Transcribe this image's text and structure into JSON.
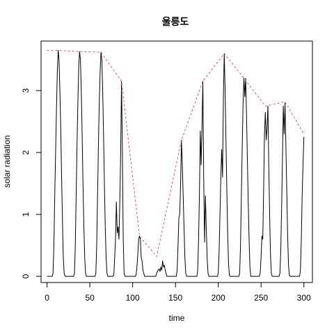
{
  "chart_data": {
    "type": "line",
    "title": "울릉도",
    "xlabel": "time",
    "ylabel": "solar radiation",
    "xlim": [
      -7,
      310
    ],
    "ylim": [
      -0.1,
      3.8
    ],
    "xticks": [
      0,
      50,
      100,
      150,
      200,
      250,
      300
    ],
    "yticks": [
      0,
      1,
      2,
      3
    ],
    "grid": false,
    "legend": "none",
    "series": [
      {
        "style": "solid",
        "color": "#000000",
        "points": [
          [
            0,
            0
          ],
          [
            1,
            0
          ],
          [
            2,
            0
          ],
          [
            3,
            0
          ],
          [
            4,
            0
          ],
          [
            5,
            0
          ],
          [
            6,
            0
          ],
          [
            7,
            0.05
          ],
          [
            8,
            0.5
          ],
          [
            9,
            1.3
          ],
          [
            10,
            2.0
          ],
          [
            11,
            2.7
          ],
          [
            12,
            3.3
          ],
          [
            13,
            3.65
          ],
          [
            14,
            3.5
          ],
          [
            15,
            3.0
          ],
          [
            16,
            2.4
          ],
          [
            17,
            1.6
          ],
          [
            18,
            0.9
          ],
          [
            19,
            0.3
          ],
          [
            20,
            0.05
          ],
          [
            21,
            0
          ],
          [
            22,
            0
          ],
          [
            23,
            0
          ],
          [
            24,
            0
          ],
          [
            25,
            0
          ],
          [
            26,
            0
          ],
          [
            27,
            0
          ],
          [
            28,
            0
          ],
          [
            29,
            0
          ],
          [
            30,
            0
          ],
          [
            31,
            0
          ],
          [
            32,
            0.05
          ],
          [
            33,
            0.5
          ],
          [
            34,
            1.3
          ],
          [
            35,
            2.1
          ],
          [
            36,
            2.8
          ],
          [
            37,
            3.4
          ],
          [
            38,
            3.63
          ],
          [
            39,
            3.5
          ],
          [
            40,
            3.0
          ],
          [
            41,
            2.3
          ],
          [
            42,
            1.5
          ],
          [
            43,
            0.8
          ],
          [
            44,
            0.3
          ],
          [
            45,
            0.05
          ],
          [
            46,
            0
          ],
          [
            47,
            0
          ],
          [
            48,
            0
          ],
          [
            49,
            0
          ],
          [
            50,
            0
          ],
          [
            51,
            0
          ],
          [
            52,
            0
          ],
          [
            53,
            0
          ],
          [
            54,
            0
          ],
          [
            55,
            0
          ],
          [
            56,
            0
          ],
          [
            57,
            0.05
          ],
          [
            58,
            0.5
          ],
          [
            59,
            1.3
          ],
          [
            60,
            2.1
          ],
          [
            61,
            2.8
          ],
          [
            62,
            3.3
          ],
          [
            63,
            3.62
          ],
          [
            64,
            3.5
          ],
          [
            65,
            3.0
          ],
          [
            66,
            2.3
          ],
          [
            67,
            1.5
          ],
          [
            68,
            0.8
          ],
          [
            69,
            0.3
          ],
          [
            70,
            0.05
          ],
          [
            71,
            0
          ],
          [
            72,
            0
          ],
          [
            73,
            0
          ],
          [
            74,
            0
          ],
          [
            75,
            0
          ],
          [
            76,
            0
          ],
          [
            77,
            0
          ],
          [
            78,
            0.02
          ],
          [
            79,
            0.3
          ],
          [
            80,
            0.6
          ],
          [
            81,
            1.2
          ],
          [
            82,
            0.7
          ],
          [
            83,
            0.8
          ],
          [
            84,
            0.6
          ],
          [
            85,
            1.2
          ],
          [
            86,
            2.0
          ],
          [
            87,
            3.15
          ],
          [
            88,
            2.0
          ],
          [
            89,
            0.6
          ],
          [
            90,
            0.05
          ],
          [
            91,
            0
          ],
          [
            92,
            0
          ],
          [
            93,
            0
          ],
          [
            94,
            0
          ],
          [
            95,
            0
          ],
          [
            96,
            0
          ],
          [
            97,
            0
          ],
          [
            98,
            0
          ],
          [
            99,
            0
          ],
          [
            100,
            0
          ],
          [
            101,
            0
          ],
          [
            102,
            0
          ],
          [
            103,
            0
          ],
          [
            104,
            0.02
          ],
          [
            105,
            0.15
          ],
          [
            106,
            0.35
          ],
          [
            107,
            0.6
          ],
          [
            108,
            0.65
          ],
          [
            109,
            0.6
          ],
          [
            110,
            0.3
          ],
          [
            111,
            0.25
          ],
          [
            112,
            0.1
          ],
          [
            113,
            0.05
          ],
          [
            114,
            0
          ],
          [
            115,
            0
          ],
          [
            116,
            0
          ],
          [
            117,
            0
          ],
          [
            118,
            0
          ],
          [
            119,
            0
          ],
          [
            120,
            0
          ],
          [
            121,
            0
          ],
          [
            122,
            0
          ],
          [
            123,
            0
          ],
          [
            124,
            0
          ],
          [
            125,
            0
          ],
          [
            126,
            0
          ],
          [
            127,
            0
          ],
          [
            128,
            0.05
          ],
          [
            129,
            0.08
          ],
          [
            130,
            0.1
          ],
          [
            131,
            0.12
          ],
          [
            132,
            0.08
          ],
          [
            133,
            0.15
          ],
          [
            134,
            0.1
          ],
          [
            135,
            0.25
          ],
          [
            136,
            0.15
          ],
          [
            137,
            0.18
          ],
          [
            138,
            0.1
          ],
          [
            139,
            0.05
          ],
          [
            140,
            0
          ],
          [
            141,
            0
          ],
          [
            142,
            0
          ],
          [
            143,
            0
          ],
          [
            144,
            0
          ],
          [
            145,
            0
          ],
          [
            146,
            0
          ],
          [
            147,
            0
          ],
          [
            148,
            0
          ],
          [
            149,
            0
          ],
          [
            150,
            0
          ],
          [
            151,
            0
          ],
          [
            152,
            0.1
          ],
          [
            153,
            0.5
          ],
          [
            154,
            0.95
          ],
          [
            155,
            1.0
          ],
          [
            156,
            1.5
          ],
          [
            157,
            2.2
          ],
          [
            158,
            1.8
          ],
          [
            159,
            1.3
          ],
          [
            160,
            0.8
          ],
          [
            161,
            0.3
          ],
          [
            162,
            0.05
          ],
          [
            163,
            0
          ],
          [
            164,
            0
          ],
          [
            165,
            0
          ],
          [
            166,
            0
          ],
          [
            167,
            0
          ],
          [
            168,
            0
          ],
          [
            169,
            0
          ],
          [
            170,
            0
          ],
          [
            171,
            0
          ],
          [
            172,
            0
          ],
          [
            173,
            0
          ],
          [
            174,
            0
          ],
          [
            175,
            0
          ],
          [
            176,
            0.1
          ],
          [
            177,
            0.6
          ],
          [
            178,
            1.3
          ],
          [
            179,
            2.35
          ],
          [
            180,
            1.8
          ],
          [
            181,
            2.4
          ],
          [
            182,
            3.15
          ],
          [
            183,
            1.6
          ],
          [
            184,
            0.55
          ],
          [
            185,
            1.3
          ],
          [
            186,
            0.8
          ],
          [
            187,
            0.3
          ],
          [
            188,
            0.05
          ],
          [
            189,
            0
          ],
          [
            190,
            0
          ],
          [
            191,
            0
          ],
          [
            192,
            0
          ],
          [
            193,
            0
          ],
          [
            194,
            0
          ],
          [
            195,
            0
          ],
          [
            196,
            0
          ],
          [
            197,
            0
          ],
          [
            198,
            0
          ],
          [
            199,
            0
          ],
          [
            200,
            0.05
          ],
          [
            201,
            0.4
          ],
          [
            202,
            1.0
          ],
          [
            203,
            1.6
          ],
          [
            204,
            2.05
          ],
          [
            205,
            1.6
          ],
          [
            206,
            2.9
          ],
          [
            207,
            3.6
          ],
          [
            208,
            3.0
          ],
          [
            209,
            2.2
          ],
          [
            210,
            1.4
          ],
          [
            211,
            0.7
          ],
          [
            212,
            0.2
          ],
          [
            213,
            0.02
          ],
          [
            214,
            0
          ],
          [
            215,
            0
          ],
          [
            216,
            0
          ],
          [
            217,
            0
          ],
          [
            218,
            0
          ],
          [
            219,
            0
          ],
          [
            220,
            0
          ],
          [
            221,
            0
          ],
          [
            222,
            0
          ],
          [
            223,
            0
          ],
          [
            224,
            0
          ],
          [
            225,
            0.05
          ],
          [
            226,
            0.5
          ],
          [
            227,
            1.3
          ],
          [
            228,
            2.1
          ],
          [
            229,
            2.8
          ],
          [
            230,
            3.2
          ],
          [
            231,
            2.9
          ],
          [
            232,
            3.2
          ],
          [
            233,
            2.6
          ],
          [
            234,
            1.9
          ],
          [
            235,
            1.2
          ],
          [
            236,
            0.6
          ],
          [
            237,
            0.15
          ],
          [
            238,
            0
          ],
          [
            239,
            0
          ],
          [
            240,
            0
          ],
          [
            241,
            0
          ],
          [
            242,
            0
          ],
          [
            243,
            0
          ],
          [
            244,
            0
          ],
          [
            245,
            0
          ],
          [
            246,
            0
          ],
          [
            247,
            0
          ],
          [
            248,
            0
          ],
          [
            249,
            0.05
          ],
          [
            250,
            0.3
          ],
          [
            251,
            0.65
          ],
          [
            252,
            0.6
          ],
          [
            253,
            1.4
          ],
          [
            254,
            2.3
          ],
          [
            255,
            2.65
          ],
          [
            256,
            2.2
          ],
          [
            257,
            2.4
          ],
          [
            258,
            2.75
          ],
          [
            259,
            1.8
          ],
          [
            260,
            1.0
          ],
          [
            261,
            0.35
          ],
          [
            262,
            0.05
          ],
          [
            263,
            0
          ],
          [
            264,
            0
          ],
          [
            265,
            0
          ],
          [
            266,
            0
          ],
          [
            267,
            0
          ],
          [
            268,
            0
          ],
          [
            269,
            0
          ],
          [
            270,
            0
          ],
          [
            271,
            0
          ],
          [
            272,
            0.05
          ],
          [
            273,
            0.4
          ],
          [
            274,
            1.1
          ],
          [
            275,
            1.9
          ],
          [
            276,
            2.75
          ],
          [
            277,
            2.3
          ],
          [
            278,
            2.8
          ],
          [
            279,
            2.1
          ],
          [
            280,
            1.4
          ],
          [
            281,
            0.7
          ],
          [
            282,
            0.2
          ],
          [
            283,
            0.02
          ],
          [
            284,
            0
          ],
          [
            285,
            0
          ],
          [
            286,
            0
          ],
          [
            287,
            0
          ],
          [
            288,
            0
          ],
          [
            289,
            0
          ],
          [
            290,
            0
          ],
          [
            291,
            0
          ],
          [
            292,
            0
          ],
          [
            293,
            0
          ],
          [
            294,
            0
          ],
          [
            295,
            0
          ],
          [
            296,
            0.1
          ],
          [
            297,
            0.6
          ],
          [
            298,
            1.3
          ],
          [
            299,
            1.8
          ],
          [
            300,
            2.25
          ]
        ]
      },
      {
        "style": "dashed",
        "color": "#df536b",
        "points": [
          [
            0,
            3.65
          ],
          [
            13,
            3.65
          ],
          [
            38,
            3.63
          ],
          [
            63,
            3.62
          ],
          [
            87,
            3.15
          ],
          [
            108,
            0.65
          ],
          [
            128,
            0.32
          ],
          [
            157,
            2.2
          ],
          [
            182,
            3.15
          ],
          [
            207,
            3.6
          ],
          [
            230,
            3.2
          ],
          [
            255,
            2.75
          ],
          [
            278,
            2.82
          ],
          [
            300,
            2.3
          ]
        ]
      }
    ]
  }
}
